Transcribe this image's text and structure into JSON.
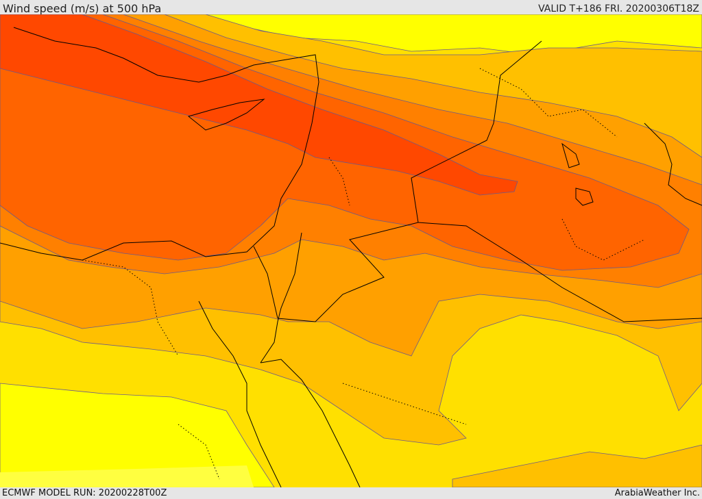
{
  "header": {
    "title": "Wind speed (m/s) at 500 hPa",
    "valid": "VALID T+186 FRI. 20200306T18Z"
  },
  "footer": {
    "model_run": "ECMWF MODEL RUN: 20200228T00Z",
    "credit": "ArabiaWeather Inc."
  },
  "colors": {
    "level_1": "#ffff00",
    "level_2": "#ffe000",
    "level_3": "#ffc000",
    "level_4": "#ffa000",
    "level_5": "#ff8000",
    "level_6": "#ff6400",
    "level_7": "#ff4800",
    "contour": "#6a5a8a",
    "coastline": "#000000"
  }
}
